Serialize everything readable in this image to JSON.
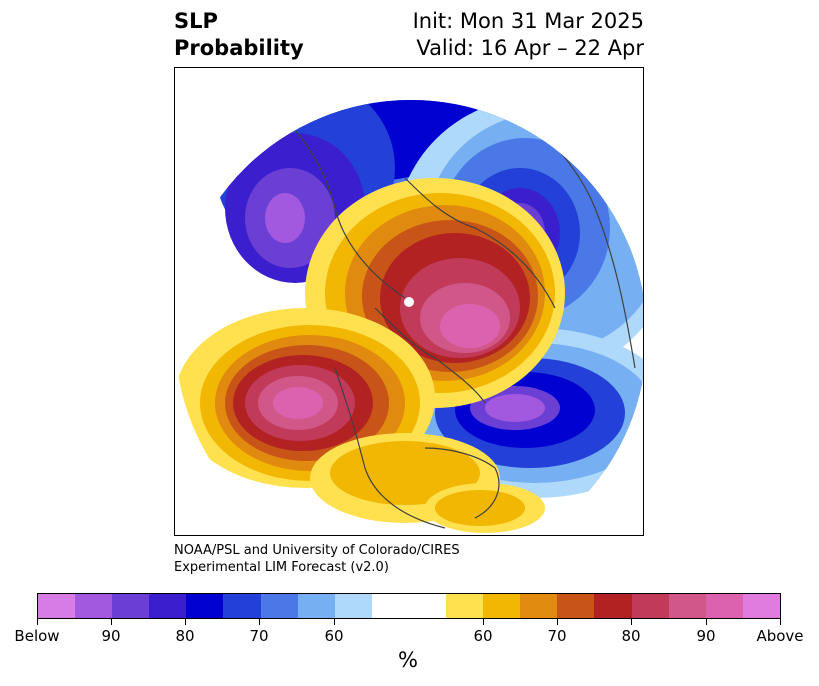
{
  "title": {
    "left_line1": "SLP",
    "left_line2": "Probability",
    "right_line1": "Init: Mon 31 Mar 2025",
    "right_line2": "Valid: 16 Apr – 22 Apr"
  },
  "credit": {
    "line1": "NOAA/PSL and University of Colorado/CIRES",
    "line2": "Experimental LIM Forecast (v2.0)"
  },
  "colorbar": {
    "colors": [
      "#d77ce7",
      "#a358e0",
      "#6b3fd4",
      "#3b1fcf",
      "#0000d0",
      "#2340d8",
      "#4a78e6",
      "#76aff2",
      "#aed9fb",
      "#ffffff",
      "#ffffff",
      "#ffe150",
      "#f2b702",
      "#e08a10",
      "#c85418",
      "#b22222",
      "#c23a5a",
      "#d05787",
      "#dc62b0",
      "#e07be0"
    ],
    "tick_labels": [
      "Below",
      "90",
      "80",
      "70",
      "60",
      "60",
      "70",
      "80",
      "90",
      "Above"
    ],
    "unit": "%"
  },
  "map": {
    "projection": "north-polar-stereographic",
    "domain": "northern-hemisphere"
  }
}
